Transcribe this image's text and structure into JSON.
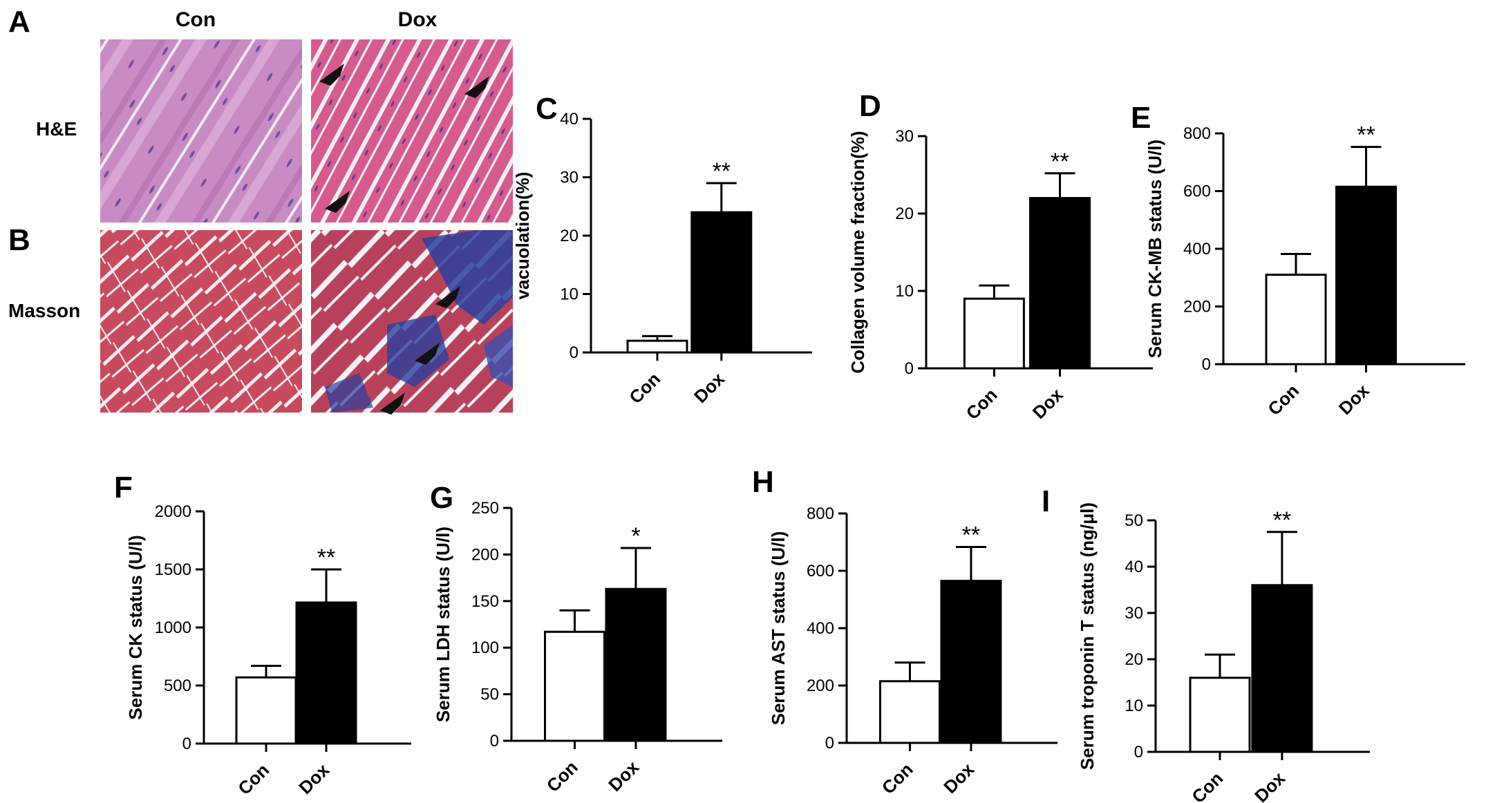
{
  "panels": {
    "A": "A",
    "B": "B",
    "col_con": "Con",
    "col_dox": "Dox",
    "row_he": "H&E",
    "row_masson": "Masson"
  },
  "histology_colors": {
    "he_base": "#c77bb8",
    "he_dox_base": "#d75a8e",
    "masson_base": "#c8485c",
    "collagen_blue": "#2a3f9e",
    "background_gap": "#f2eef0"
  },
  "chart_data": [
    {
      "id": "C",
      "type": "bar",
      "panel_label": "C",
      "ylabel": "vacuolation(%)",
      "categories": [
        "Con",
        "Dox"
      ],
      "values": [
        2,
        24
      ],
      "errors": [
        0.8,
        5
      ],
      "yticks": [
        0,
        10,
        20,
        30,
        40
      ],
      "ylim": [
        0,
        40
      ],
      "significance": [
        "",
        "**"
      ],
      "bar_colors": [
        "#ffffff",
        "#000000"
      ]
    },
    {
      "id": "D",
      "type": "bar",
      "panel_label": "D",
      "ylabel": "Collagen volume fraction(%)",
      "categories": [
        "Con",
        "Dox"
      ],
      "values": [
        9,
        22
      ],
      "errors": [
        1.7,
        3.2
      ],
      "yticks": [
        0,
        10,
        20,
        30
      ],
      "ylim": [
        0,
        30
      ],
      "significance": [
        "",
        "**"
      ],
      "bar_colors": [
        "#ffffff",
        "#000000"
      ]
    },
    {
      "id": "E",
      "type": "bar",
      "panel_label": "E",
      "ylabel": "Serum CK-MB status (U/l)",
      "categories": [
        "Con",
        "Dox"
      ],
      "values": [
        310,
        615
      ],
      "errors": [
        72,
        138
      ],
      "yticks": [
        0,
        200,
        400,
        600,
        800
      ],
      "ylim": [
        0,
        800
      ],
      "significance": [
        "",
        "**"
      ],
      "bar_colors": [
        "#ffffff",
        "#000000"
      ]
    },
    {
      "id": "F",
      "type": "bar",
      "panel_label": "F",
      "ylabel": "Serum CK status (U/l)",
      "categories": [
        "Con",
        "Dox"
      ],
      "values": [
        570,
        1215
      ],
      "errors": [
        100,
        285
      ],
      "yticks": [
        0,
        500,
        1000,
        1500,
        2000
      ],
      "ylim": [
        0,
        2000
      ],
      "significance": [
        "",
        "**"
      ],
      "bar_colors": [
        "#ffffff",
        "#000000"
      ]
    },
    {
      "id": "G",
      "type": "bar",
      "panel_label": "G",
      "ylabel": "Serum LDH status (U/l)",
      "categories": [
        "Con",
        "Dox"
      ],
      "values": [
        117,
        163
      ],
      "errors": [
        23,
        44
      ],
      "yticks": [
        0,
        50,
        100,
        150,
        200,
        250
      ],
      "ylim": [
        0,
        250
      ],
      "significance": [
        "",
        "*"
      ],
      "bar_colors": [
        "#ffffff",
        "#000000"
      ]
    },
    {
      "id": "H",
      "type": "bar",
      "panel_label": "H",
      "ylabel": "Serum AST status (U/l)",
      "categories": [
        "Con",
        "Dox"
      ],
      "values": [
        215,
        565
      ],
      "errors": [
        65,
        118
      ],
      "yticks": [
        0,
        200,
        400,
        600,
        800
      ],
      "ylim": [
        0,
        800
      ],
      "significance": [
        "",
        "**"
      ],
      "bar_colors": [
        "#ffffff",
        "#000000"
      ]
    },
    {
      "id": "I",
      "type": "bar",
      "panel_label": "I",
      "ylabel": "Serum troponin T status (ng/μl)",
      "categories": [
        "Con",
        "Dox"
      ],
      "values": [
        16,
        36
      ],
      "errors": [
        5,
        11.5
      ],
      "yticks": [
        0,
        10,
        20,
        30,
        40,
        50
      ],
      "ylim": [
        0,
        50
      ],
      "significance": [
        "",
        "**"
      ],
      "bar_colors": [
        "#ffffff",
        "#000000"
      ]
    }
  ]
}
